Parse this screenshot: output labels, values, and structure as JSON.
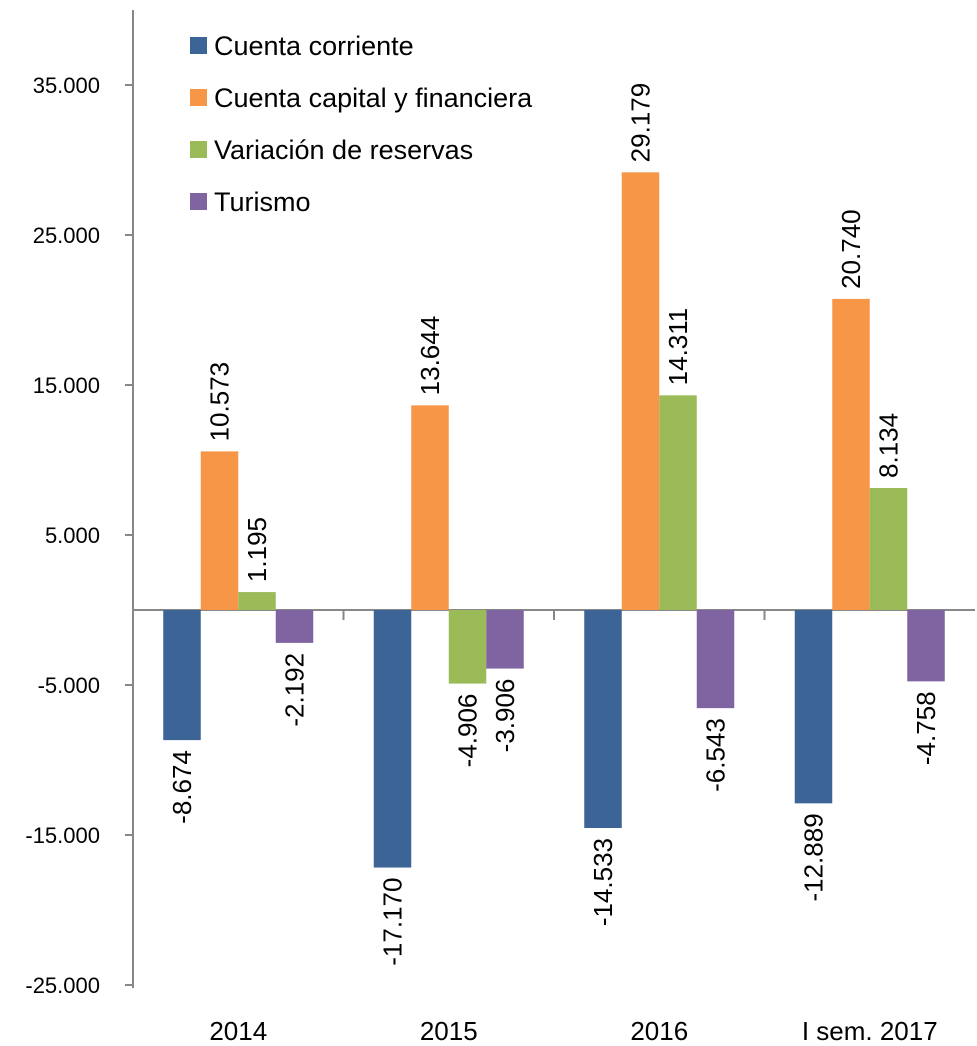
{
  "chart_data": {
    "type": "bar",
    "categories": [
      "2014",
      "2015",
      "2016",
      "I sem. 2017"
    ],
    "series": [
      {
        "name": "Cuenta corriente",
        "color": "#3c6497",
        "values": [
          -8674,
          -17170,
          -14533,
          -12889
        ],
        "labels": [
          "-8.674",
          "-17.170",
          "-14.533",
          "-12.889"
        ]
      },
      {
        "name": "Cuenta capital y financiera",
        "color": "#f79646",
        "values": [
          10573,
          13644,
          29179,
          20740
        ],
        "labels": [
          "10.573",
          "13.644",
          "29.179",
          "20.740"
        ]
      },
      {
        "name": "Variación de reservas",
        "color": "#9bbb59",
        "values": [
          1195,
          -4906,
          14311,
          8134
        ],
        "labels": [
          "1.195",
          "-4.906",
          "14.311",
          "8.134"
        ]
      },
      {
        "name": "Turismo",
        "color": "#8064a2",
        "values": [
          -2192,
          -3906,
          -6543,
          -4758
        ],
        "labels": [
          "-2.192",
          "-3.906",
          "-6.543",
          "-4.758"
        ]
      }
    ],
    "y_ticks": [
      35000,
      25000,
      15000,
      5000,
      -5000,
      -15000,
      -25000
    ],
    "y_tick_labels": [
      "35.000",
      "25.000",
      "15.000",
      "5.000",
      "-5.000",
      "-15.000",
      "-25.000"
    ],
    "ylim": [
      -25000,
      40000
    ],
    "legend_position": "top-left",
    "grid": false,
    "title": "",
    "xlabel": "",
    "ylabel": ""
  }
}
